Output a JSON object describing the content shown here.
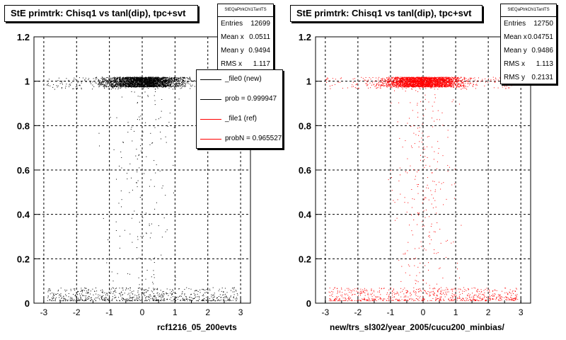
{
  "chart_data": [
    {
      "type": "scatter",
      "title": "StE primtrk: Chisq1 vs tanl(dip), tpc+svt",
      "xlabel": "rcf1216_05_200evts",
      "ylabel": "",
      "xlim": [
        -3.3,
        3.3
      ],
      "ylim": [
        0,
        1.2
      ],
      "x_ticks": [
        "-3",
        "-2",
        "-1",
        "0",
        "1",
        "2",
        "3"
      ],
      "y_ticks": [
        "0",
        "0.2",
        "0.4",
        "0.6",
        "0.8",
        "1",
        "1.2"
      ],
      "grid": true,
      "marker_color": "#000000",
      "stats": {
        "name": "StEQaPtrkChi1TanlTS",
        "entries_label": "Entries",
        "entries": "12699",
        "mean_x_label": "Mean x",
        "mean_x": "0.0511",
        "mean_y_label": "Mean y",
        "mean_y": "0.9494",
        "rms_x_label": "RMS x",
        "rms_x": "1.117"
      },
      "legend": {
        "placement": "top-right",
        "entries": [
          {
            "text": "_file0 (new)",
            "color": "#000000"
          },
          {
            "text": "prob = 0.999947",
            "color": "#000000"
          },
          {
            "text": "_file1 (ref)",
            "color": "#ff0000"
          },
          {
            "text": "probN = 0.965527",
            "color": "#ff0000"
          }
        ]
      }
    },
    {
      "type": "scatter",
      "title": "StE primtrk: Chisq1 vs tanl(dip), tpc+svt",
      "xlabel": "new/trs_sl302/year_2005/cucu200_minbias/",
      "ylabel": "",
      "xlim": [
        -3.3,
        3.3
      ],
      "ylim": [
        0,
        1.2
      ],
      "x_ticks": [
        "-3",
        "-2",
        "-1",
        "0",
        "1",
        "2",
        "3"
      ],
      "y_ticks": [
        "0",
        "0.2",
        "0.4",
        "0.6",
        "0.8",
        "1",
        "1.2"
      ],
      "grid": true,
      "marker_color": "#ff0000",
      "stats": {
        "name": "StEQaPtrkChi1TanlTS",
        "entries_label": "Entries",
        "entries": "12750",
        "mean_x_label": "Mean x",
        "mean_x": "0.04751",
        "mean_y_label": "Mean y",
        "mean_y": "0.9486",
        "rms_x_label": "RMS x",
        "rms_x": "1.113",
        "rms_y_label": "RMS y",
        "rms_y": "0.2131"
      }
    }
  ]
}
